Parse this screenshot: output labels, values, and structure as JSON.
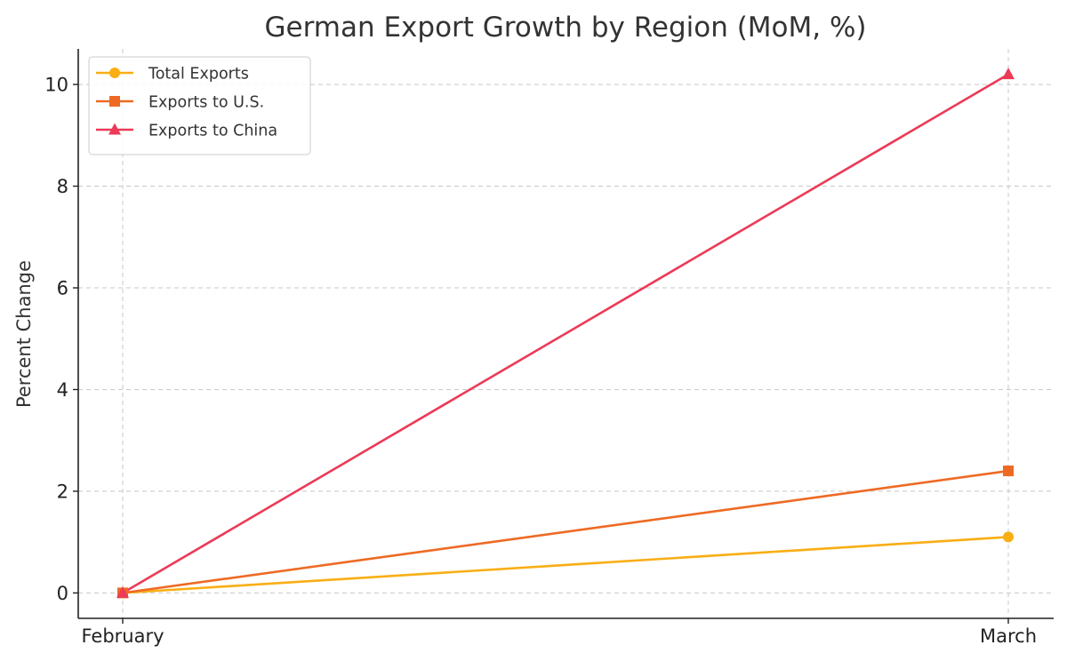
{
  "chart_data": {
    "type": "line",
    "title": "German Export Growth by Region (MoM, %)",
    "xlabel": "",
    "ylabel": "Percent Change",
    "categories": [
      "February",
      "March"
    ],
    "ylim": [
      -0.5,
      10.7
    ],
    "yticks": [
      0,
      2,
      4,
      6,
      8,
      10
    ],
    "grid": true,
    "legend_position": "top-left",
    "series": [
      {
        "name": "Total Exports",
        "values": [
          0,
          1.1
        ],
        "color": "#F9AE14",
        "marker": "circle"
      },
      {
        "name": "Exports to U.S.",
        "values": [
          0,
          2.4
        ],
        "color": "#EE6A24",
        "marker": "square"
      },
      {
        "name": "Exports to China",
        "values": [
          0,
          10.2
        ],
        "color": "#EC3A57",
        "marker": "triangle"
      }
    ]
  }
}
